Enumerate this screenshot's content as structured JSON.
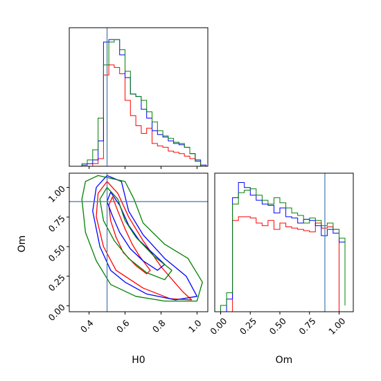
{
  "chart_data": {
    "type": "corner",
    "parameters": [
      "H0",
      "Om"
    ],
    "truth": {
      "H0": 0.5,
      "Om": 0.88
    },
    "colors": {
      "red": "#ff0000",
      "blue": "#0000ff",
      "green": "#008000",
      "truth": "#4477aa"
    },
    "series": [
      {
        "color": "red"
      },
      {
        "color": "blue"
      },
      {
        "color": "green"
      }
    ],
    "h0_hist": {
      "xlim": [
        0.29,
        1.06
      ],
      "bins": [
        0.3,
        0.33,
        0.36,
        0.39,
        0.42,
        0.45,
        0.48,
        0.51,
        0.54,
        0.57,
        0.6,
        0.63,
        0.66,
        0.69,
        0.72,
        0.75,
        0.78,
        0.81,
        0.84,
        0.87,
        0.9,
        0.93,
        0.96,
        0.99,
        1.02,
        1.05
      ],
      "red": [
        0,
        0,
        0,
        0,
        0.02,
        0.06,
        0.72,
        0.8,
        0.78,
        0.73,
        0.52,
        0.4,
        0.32,
        0.26,
        0.3,
        0.18,
        0.16,
        0.15,
        0.12,
        0.11,
        0.1,
        0.08,
        0.06,
        0.04,
        0.0
      ],
      "blue": [
        0,
        0,
        0.01,
        0.02,
        0.05,
        0.2,
        0.98,
        1.0,
        1.0,
        0.88,
        0.7,
        0.57,
        0.55,
        0.45,
        0.38,
        0.28,
        0.25,
        0.23,
        0.2,
        0.18,
        0.17,
        0.15,
        0.1,
        0.05,
        0.01
      ],
      "green": [
        0,
        0,
        0.02,
        0.05,
        0.13,
        0.38,
        0.8,
        0.98,
        1.0,
        0.92,
        0.75,
        0.57,
        0.55,
        0.52,
        0.43,
        0.35,
        0.28,
        0.24,
        0.22,
        0.19,
        0.18,
        0.15,
        0.1,
        0.04,
        0.0
      ]
    },
    "om_hist": {
      "xlim": [
        -0.05,
        1.12
      ],
      "bins": [
        0.0,
        0.05,
        0.1,
        0.15,
        0.2,
        0.25,
        0.3,
        0.35,
        0.4,
        0.45,
        0.5,
        0.55,
        0.6,
        0.65,
        0.7,
        0.75,
        0.8,
        0.85,
        0.9,
        0.95,
        1.0,
        1.05
      ],
      "red": [
        0,
        0,
        0.72,
        0.75,
        0.75,
        0.74,
        0.7,
        0.68,
        0.72,
        0.65,
        0.7,
        0.67,
        0.66,
        0.65,
        0.64,
        0.63,
        0.7,
        0.66,
        0.67,
        0.65,
        0,
        0
      ],
      "blue": [
        0,
        0.1,
        0.9,
        1.02,
        0.98,
        0.92,
        0.88,
        0.85,
        0.84,
        0.78,
        0.82,
        0.75,
        0.74,
        0.7,
        0.73,
        0.72,
        0.68,
        0.6,
        0.65,
        0.62,
        0.55,
        0.1
      ],
      "green": [
        0.05,
        0.15,
        0.85,
        0.94,
        0.96,
        0.97,
        0.92,
        0.88,
        0.85,
        0.9,
        0.86,
        0.82,
        0.78,
        0.76,
        0.7,
        0.74,
        0.72,
        0.68,
        0.7,
        0.65,
        0.58,
        0.05
      ]
    },
    "scatter": {
      "xlim": [
        0.29,
        1.06
      ],
      "ylim": [
        -0.05,
        1.12
      ],
      "contours": [
        {
          "color": "red",
          "points": [
            [
              0.5,
              1.05
            ],
            [
              0.56,
              0.95
            ],
            [
              0.62,
              0.75
            ],
            [
              0.7,
              0.55
            ],
            [
              0.8,
              0.33
            ],
            [
              0.92,
              0.12
            ],
            [
              0.97,
              0.05
            ],
            [
              0.85,
              0.06
            ],
            [
              0.7,
              0.15
            ],
            [
              0.55,
              0.3
            ],
            [
              0.48,
              0.5
            ],
            [
              0.44,
              0.75
            ],
            [
              0.45,
              0.95
            ]
          ]
        },
        {
          "color": "red",
          "points": [
            [
              0.53,
              0.92
            ],
            [
              0.56,
              0.8
            ],
            [
              0.6,
              0.65
            ],
            [
              0.64,
              0.52
            ],
            [
              0.68,
              0.42
            ],
            [
              0.74,
              0.3
            ],
            [
              0.72,
              0.27
            ],
            [
              0.66,
              0.34
            ],
            [
              0.59,
              0.45
            ],
            [
              0.55,
              0.58
            ],
            [
              0.52,
              0.72
            ],
            [
              0.51,
              0.85
            ]
          ]
        },
        {
          "color": "blue",
          "points": [
            [
              0.5,
              1.1
            ],
            [
              0.58,
              1.05
            ],
            [
              0.62,
              0.8
            ],
            [
              0.7,
              0.6
            ],
            [
              0.82,
              0.4
            ],
            [
              0.94,
              0.25
            ],
            [
              1.0,
              0.08
            ],
            [
              0.88,
              0.05
            ],
            [
              0.72,
              0.1
            ],
            [
              0.6,
              0.2
            ],
            [
              0.52,
              0.3
            ],
            [
              0.46,
              0.5
            ],
            [
              0.42,
              0.8
            ],
            [
              0.44,
              1.0
            ]
          ]
        },
        {
          "color": "blue",
          "points": [
            [
              0.52,
              0.96
            ],
            [
              0.57,
              0.85
            ],
            [
              0.62,
              0.68
            ],
            [
              0.68,
              0.55
            ],
            [
              0.75,
              0.45
            ],
            [
              0.82,
              0.35
            ],
            [
              0.78,
              0.3
            ],
            [
              0.7,
              0.38
            ],
            [
              0.63,
              0.48
            ],
            [
              0.57,
              0.62
            ],
            [
              0.53,
              0.76
            ],
            [
              0.5,
              0.88
            ]
          ]
        },
        {
          "color": "green",
          "points": [
            [
              0.45,
              1.1
            ],
            [
              0.6,
              1.05
            ],
            [
              0.65,
              0.9
            ],
            [
              0.7,
              0.7
            ],
            [
              0.82,
              0.52
            ],
            [
              0.95,
              0.4
            ],
            [
              1.03,
              0.2
            ],
            [
              1.0,
              0.04
            ],
            [
              0.82,
              0.04
            ],
            [
              0.66,
              0.08
            ],
            [
              0.52,
              0.18
            ],
            [
              0.44,
              0.38
            ],
            [
              0.38,
              0.62
            ],
            [
              0.36,
              0.9
            ],
            [
              0.38,
              1.05
            ]
          ]
        },
        {
          "color": "green",
          "points": [
            [
              0.5,
              1.0
            ],
            [
              0.56,
              0.9
            ],
            [
              0.6,
              0.72
            ],
            [
              0.66,
              0.58
            ],
            [
              0.76,
              0.42
            ],
            [
              0.86,
              0.3
            ],
            [
              0.82,
              0.22
            ],
            [
              0.72,
              0.28
            ],
            [
              0.62,
              0.4
            ],
            [
              0.54,
              0.55
            ],
            [
              0.48,
              0.72
            ],
            [
              0.46,
              0.9
            ]
          ]
        }
      ]
    }
  },
  "axes": {
    "h0": {
      "label": "H0",
      "ticks": [
        {
          "v": 0.4,
          "t": "0.4"
        },
        {
          "v": 0.6,
          "t": "0.6"
        },
        {
          "v": 0.8,
          "t": "0.8"
        },
        {
          "v": 1.0,
          "t": "1.0"
        }
      ]
    },
    "om": {
      "label": "Om",
      "ticks": [
        {
          "v": 0.0,
          "t": "0.00"
        },
        {
          "v": 0.25,
          "t": "0.25"
        },
        {
          "v": 0.5,
          "t": "0.50"
        },
        {
          "v": 0.75,
          "t": "0.75"
        },
        {
          "v": 1.0,
          "t": "1.00"
        }
      ]
    }
  }
}
